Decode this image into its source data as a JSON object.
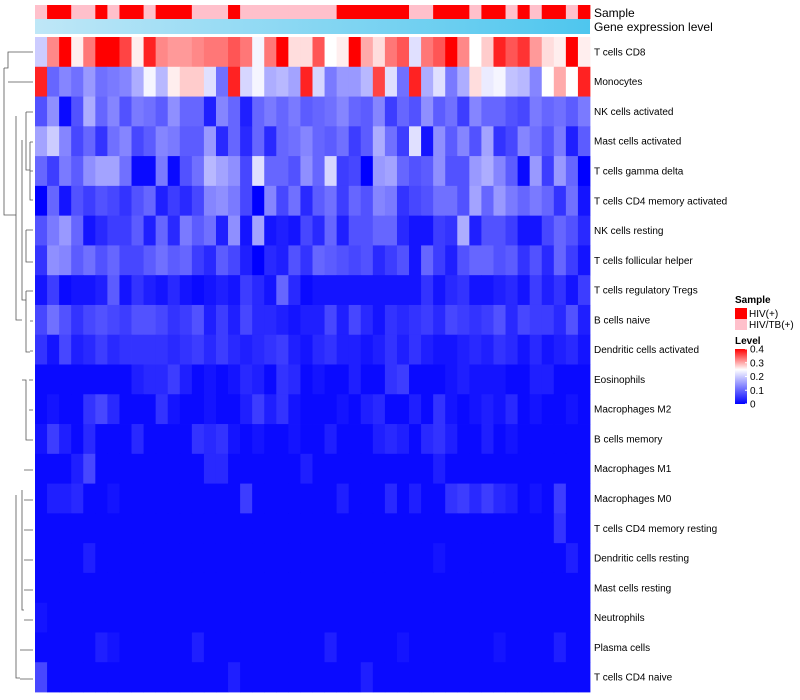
{
  "chart_data": {
    "type": "heatmap",
    "rows": [
      "T cells CD8",
      "Monocytes",
      "NK cells activated",
      "Mast cells activated",
      "T cells gamma delta",
      "T cells CD4 memory activated",
      "NK cells resting",
      "T cells follicular helper",
      "T cells regulatory  Tregs",
      "B cells naive",
      "Dendritic cells activated",
      "Eosinophils",
      "Macrophages M2",
      "B cells memory",
      "Macrophages M1",
      "Macrophages M0",
      "T cells CD4 memory resting",
      "Dendritic cells resting",
      "Mast cells resting",
      "Neutrophils",
      "Plasma cells",
      "T cells CD4 naive"
    ],
    "n_columns": 46,
    "annotations": {
      "sample": {
        "label": "Sample",
        "values": [
          "HIV/TB(+)",
          "HIV(+)",
          "HIV(+)",
          "HIV/TB(+)",
          "HIV/TB(+)",
          "HIV(+)",
          "HIV/TB(+)",
          "HIV(+)",
          "HIV(+)",
          "HIV/TB(+)",
          "HIV(+)",
          "HIV(+)",
          "HIV(+)",
          "HIV/TB(+)",
          "HIV/TB(+)",
          "HIV/TB(+)",
          "HIV(+)",
          "HIV/TB(+)",
          "HIV/TB(+)",
          "HIV/TB(+)",
          "HIV/TB(+)",
          "HIV/TB(+)",
          "HIV/TB(+)",
          "HIV/TB(+)",
          "HIV/TB(+)",
          "HIV(+)",
          "HIV(+)",
          "HIV(+)",
          "HIV(+)",
          "HIV(+)",
          "HIV(+)",
          "HIV/TB(+)",
          "HIV/TB(+)",
          "HIV(+)",
          "HIV(+)",
          "HIV(+)",
          "HIV/TB(+)",
          "HIV(+)",
          "HIV(+)",
          "HIV/TB(+)",
          "HIV(+)",
          "HIV/TB(+)",
          "HIV(+)",
          "HIV(+)",
          "HIV/TB(+)",
          "HIV(+)"
        ]
      },
      "gene_expression": {
        "label": "Gene expression level"
      }
    },
    "matrix": [
      [
        0.2,
        0.32,
        0.4,
        0.26,
        0.33,
        0.4,
        0.4,
        0.36,
        0.26,
        0.38,
        0.32,
        0.31,
        0.31,
        0.32,
        0.33,
        0.33,
        0.35,
        0.33,
        0.24,
        0.33,
        0.4,
        0.27,
        0.27,
        0.35,
        0.25,
        0.26,
        0.41,
        0.3,
        0.27,
        0.33,
        0.35,
        0.22,
        0.33,
        0.35,
        0.4,
        0.32,
        0.25,
        0.28,
        0.38,
        0.35,
        0.37,
        0.31,
        0.27,
        0.26,
        0.4,
        0.26
      ],
      [
        0.38,
        0.1,
        0.13,
        0.11,
        0.15,
        0.11,
        0.12,
        0.13,
        0.17,
        0.24,
        0.18,
        0.26,
        0.28,
        0.28,
        0.22,
        0.11,
        0.38,
        0.21,
        0.24,
        0.17,
        0.18,
        0.16,
        0.38,
        0.21,
        0.12,
        0.15,
        0.15,
        0.18,
        0.36,
        0.22,
        0.11,
        0.38,
        0.17,
        0.22,
        0.12,
        0.17,
        0.27,
        0.23,
        0.24,
        0.19,
        0.18,
        0.13,
        0.25,
        0.3,
        0.25,
        0.38
      ],
      [
        0.08,
        0.14,
        0.01,
        0.08,
        0.17,
        0.1,
        0.13,
        0.08,
        0.12,
        0.11,
        0.09,
        0.14,
        0.1,
        0.1,
        0.03,
        0.13,
        0.1,
        0.03,
        0.1,
        0.12,
        0.1,
        0.12,
        0.09,
        0.1,
        0.11,
        0.13,
        0.1,
        0.09,
        0.13,
        0.06,
        0.1,
        0.08,
        0.14,
        0.09,
        0.11,
        0.06,
        0.13,
        0.1,
        0.1,
        0.08,
        0.07,
        0.12,
        0.1,
        0.11,
        0.09,
        0.12
      ],
      [
        0.16,
        0.2,
        0.13,
        0.07,
        0.1,
        0.05,
        0.11,
        0.13,
        0.07,
        0.09,
        0.13,
        0.12,
        0.09,
        0.09,
        0.15,
        0.04,
        0.1,
        0.04,
        0.1,
        0.04,
        0.1,
        0.11,
        0.13,
        0.1,
        0.09,
        0.11,
        0.06,
        0.09,
        0.17,
        0.11,
        0.06,
        0.22,
        0.02,
        0.14,
        0.09,
        0.13,
        0.08,
        0.16,
        0.05,
        0.07,
        0.13,
        0.11,
        0.08,
        0.12,
        0.03,
        0.09
      ],
      [
        0.1,
        0.06,
        0.12,
        0.09,
        0.14,
        0.16,
        0.16,
        0.11,
        0.01,
        0.01,
        0.12,
        0.01,
        0.08,
        0.11,
        0.18,
        0.16,
        0.14,
        0.07,
        0.22,
        0.1,
        0.1,
        0.08,
        0.14,
        0.1,
        0.21,
        0.06,
        0.07,
        0.0,
        0.15,
        0.16,
        0.1,
        0.08,
        0.09,
        0.14,
        0.08,
        0.08,
        0.15,
        0.17,
        0.13,
        0.09,
        0.01,
        0.15,
        0.06,
        0.15,
        0.1,
        0.0
      ],
      [
        0.0,
        0.1,
        0.02,
        0.08,
        0.06,
        0.08,
        0.07,
        0.05,
        0.08,
        0.1,
        0.03,
        0.06,
        0.04,
        0.07,
        0.13,
        0.14,
        0.12,
        0.07,
        0.0,
        0.13,
        0.07,
        0.11,
        0.04,
        0.09,
        0.11,
        0.06,
        0.1,
        0.08,
        0.13,
        0.12,
        0.05,
        0.07,
        0.08,
        0.11,
        0.11,
        0.08,
        0.16,
        0.1,
        0.15,
        0.12,
        0.1,
        0.12,
        0.1,
        0.05,
        0.11,
        0.02
      ],
      [
        0.08,
        0.12,
        0.15,
        0.1,
        0.02,
        0.04,
        0.06,
        0.06,
        0.09,
        0.03,
        0.1,
        0.04,
        0.12,
        0.09,
        0.11,
        0.03,
        0.14,
        0.02,
        0.16,
        0.02,
        0.03,
        0.02,
        0.07,
        0.04,
        0.1,
        0.03,
        0.08,
        0.08,
        0.1,
        0.1,
        0.04,
        0.02,
        0.02,
        0.06,
        0.05,
        0.17,
        0.03,
        0.08,
        0.08,
        0.06,
        0.02,
        0.02,
        0.07,
        0.1,
        0.08,
        0.04
      ],
      [
        0.05,
        0.14,
        0.13,
        0.09,
        0.11,
        0.08,
        0.1,
        0.07,
        0.07,
        0.09,
        0.11,
        0.09,
        0.1,
        0.06,
        0.04,
        0.09,
        0.07,
        0.03,
        0.0,
        0.04,
        0.03,
        0.08,
        0.05,
        0.1,
        0.09,
        0.08,
        0.07,
        0.08,
        0.04,
        0.06,
        0.08,
        0.02,
        0.1,
        0.06,
        0.03,
        0.08,
        0.1,
        0.1,
        0.08,
        0.09,
        0.05,
        0.08,
        0.04,
        0.1,
        0.06,
        0.02
      ],
      [
        0.02,
        0.06,
        0.01,
        0.02,
        0.02,
        0.03,
        0.09,
        0.02,
        0.05,
        0.03,
        0.02,
        0.04,
        0.02,
        0.01,
        0.02,
        0.03,
        0.02,
        0.06,
        0.04,
        0.02,
        0.1,
        0.04,
        0.01,
        0.02,
        0.02,
        0.02,
        0.02,
        0.02,
        0.02,
        0.02,
        0.02,
        0.02,
        0.05,
        0.02,
        0.04,
        0.05,
        0.02,
        0.02,
        0.03,
        0.04,
        0.02,
        0.06,
        0.03,
        0.05,
        0.02,
        0.06
      ],
      [
        0.07,
        0.11,
        0.08,
        0.05,
        0.07,
        0.08,
        0.07,
        0.06,
        0.08,
        0.08,
        0.07,
        0.05,
        0.06,
        0.08,
        0.03,
        0.06,
        0.03,
        0.07,
        0.04,
        0.04,
        0.03,
        0.02,
        0.03,
        0.03,
        0.07,
        0.03,
        0.07,
        0.04,
        0.02,
        0.05,
        0.04,
        0.05,
        0.06,
        0.04,
        0.07,
        0.06,
        0.05,
        0.06,
        0.08,
        0.04,
        0.07,
        0.06,
        0.06,
        0.04,
        0.08,
        0.03
      ],
      [
        0.05,
        0.02,
        0.07,
        0.03,
        0.04,
        0.06,
        0.04,
        0.05,
        0.05,
        0.05,
        0.05,
        0.04,
        0.05,
        0.06,
        0.04,
        0.06,
        0.04,
        0.03,
        0.04,
        0.05,
        0.06,
        0.03,
        0.02,
        0.04,
        0.05,
        0.03,
        0.03,
        0.02,
        0.03,
        0.05,
        0.03,
        0.05,
        0.03,
        0.02,
        0.02,
        0.03,
        0.04,
        0.03,
        0.05,
        0.04,
        0.02,
        0.04,
        0.02,
        0.03,
        0.04,
        0.02
      ],
      [
        0.01,
        0.01,
        0.01,
        0.01,
        0.01,
        0.01,
        0.01,
        0.01,
        0.03,
        0.04,
        0.04,
        0.06,
        0.03,
        0.01,
        0.02,
        0.01,
        0.02,
        0.04,
        0.03,
        0.01,
        0.05,
        0.04,
        0.01,
        0.02,
        0.01,
        0.01,
        0.03,
        0.01,
        0.01,
        0.05,
        0.06,
        0.01,
        0.01,
        0.01,
        0.02,
        0.03,
        0.02,
        0.02,
        0.02,
        0.01,
        0.01,
        0.03,
        0.03,
        0.01,
        0.01,
        0.01
      ],
      [
        0.01,
        0.02,
        0.01,
        0.01,
        0.05,
        0.07,
        0.04,
        0.01,
        0.01,
        0.01,
        0.05,
        0.02,
        0.01,
        0.01,
        0.02,
        0.01,
        0.01,
        0.03,
        0.06,
        0.03,
        0.05,
        0.02,
        0.01,
        0.01,
        0.01,
        0.02,
        0.01,
        0.03,
        0.04,
        0.01,
        0.01,
        0.03,
        0.01,
        0.05,
        0.02,
        0.01,
        0.02,
        0.03,
        0.02,
        0.04,
        0.01,
        0.02,
        0.01,
        0.01,
        0.02,
        0.01
      ],
      [
        0.02,
        0.06,
        0.03,
        0.01,
        0.04,
        0.01,
        0.01,
        0.01,
        0.04,
        0.01,
        0.01,
        0.01,
        0.01,
        0.05,
        0.04,
        0.05,
        0.02,
        0.01,
        0.02,
        0.01,
        0.01,
        0.02,
        0.01,
        0.01,
        0.03,
        0.01,
        0.01,
        0.01,
        0.03,
        0.04,
        0.03,
        0.01,
        0.04,
        0.05,
        0.03,
        0.01,
        0.01,
        0.03,
        0.01,
        0.02,
        0.01,
        0.01,
        0.01,
        0.01,
        0.01,
        0.01
      ],
      [
        0.01,
        0.01,
        0.01,
        0.03,
        0.07,
        0.01,
        0.01,
        0.01,
        0.01,
        0.01,
        0.01,
        0.01,
        0.01,
        0.01,
        0.04,
        0.04,
        0.01,
        0.01,
        0.01,
        0.01,
        0.01,
        0.01,
        0.03,
        0.01,
        0.01,
        0.01,
        0.01,
        0.01,
        0.01,
        0.01,
        0.01,
        0.01,
        0.01,
        0.03,
        0.01,
        0.01,
        0.01,
        0.01,
        0.01,
        0.01,
        0.01,
        0.01,
        0.01,
        0.01,
        0.01,
        0.01
      ],
      [
        0.01,
        0.03,
        0.03,
        0.04,
        0.01,
        0.01,
        0.02,
        0.01,
        0.01,
        0.01,
        0.01,
        0.01,
        0.01,
        0.01,
        0.01,
        0.01,
        0.01,
        0.06,
        0.01,
        0.01,
        0.01,
        0.01,
        0.01,
        0.01,
        0.01,
        0.03,
        0.01,
        0.01,
        0.01,
        0.04,
        0.01,
        0.03,
        0.01,
        0.01,
        0.05,
        0.06,
        0.04,
        0.06,
        0.04,
        0.03,
        0.01,
        0.02,
        0.01,
        0.06,
        0.01,
        0.01
      ],
      [
        0.01,
        0.01,
        0.01,
        0.01,
        0.01,
        0.01,
        0.01,
        0.01,
        0.01,
        0.01,
        0.01,
        0.01,
        0.01,
        0.01,
        0.01,
        0.01,
        0.01,
        0.01,
        0.01,
        0.01,
        0.01,
        0.01,
        0.01,
        0.01,
        0.01,
        0.01,
        0.01,
        0.01,
        0.01,
        0.01,
        0.01,
        0.01,
        0.01,
        0.01,
        0.01,
        0.01,
        0.01,
        0.01,
        0.01,
        0.01,
        0.01,
        0.01,
        0.01,
        0.05,
        0.01,
        0.01
      ],
      [
        0.01,
        0.01,
        0.01,
        0.01,
        0.03,
        0.01,
        0.01,
        0.01,
        0.01,
        0.01,
        0.01,
        0.01,
        0.01,
        0.01,
        0.01,
        0.01,
        0.01,
        0.01,
        0.01,
        0.01,
        0.01,
        0.01,
        0.01,
        0.01,
        0.01,
        0.01,
        0.01,
        0.01,
        0.01,
        0.01,
        0.01,
        0.01,
        0.01,
        0.02,
        0.01,
        0.01,
        0.01,
        0.01,
        0.01,
        0.01,
        0.01,
        0.01,
        0.01,
        0.01,
        0.03,
        0.01
      ],
      [
        0.01,
        0.01,
        0.01,
        0.01,
        0.01,
        0.01,
        0.01,
        0.01,
        0.01,
        0.01,
        0.01,
        0.01,
        0.01,
        0.01,
        0.01,
        0.01,
        0.01,
        0.01,
        0.01,
        0.01,
        0.01,
        0.01,
        0.01,
        0.01,
        0.01,
        0.01,
        0.01,
        0.01,
        0.01,
        0.01,
        0.01,
        0.01,
        0.01,
        0.01,
        0.01,
        0.01,
        0.01,
        0.01,
        0.01,
        0.01,
        0.01,
        0.01,
        0.01,
        0.01,
        0.01,
        0.01
      ],
      [
        0.02,
        0.01,
        0.01,
        0.01,
        0.01,
        0.01,
        0.01,
        0.01,
        0.01,
        0.01,
        0.01,
        0.01,
        0.01,
        0.01,
        0.01,
        0.01,
        0.01,
        0.01,
        0.01,
        0.01,
        0.01,
        0.01,
        0.01,
        0.01,
        0.01,
        0.01,
        0.01,
        0.01,
        0.01,
        0.01,
        0.01,
        0.01,
        0.01,
        0.01,
        0.01,
        0.01,
        0.01,
        0.01,
        0.01,
        0.01,
        0.01,
        0.01,
        0.01,
        0.01,
        0.01,
        0.01
      ],
      [
        0.01,
        0.01,
        0.01,
        0.01,
        0.01,
        0.03,
        0.02,
        0.01,
        0.01,
        0.01,
        0.01,
        0.01,
        0.01,
        0.03,
        0.01,
        0.01,
        0.01,
        0.01,
        0.01,
        0.01,
        0.01,
        0.01,
        0.01,
        0.01,
        0.03,
        0.01,
        0.01,
        0.01,
        0.01,
        0.01,
        0.02,
        0.01,
        0.01,
        0.01,
        0.01,
        0.01,
        0.01,
        0.01,
        0.02,
        0.01,
        0.01,
        0.01,
        0.01,
        0.03,
        0.01,
        0.01
      ],
      [
        0.07,
        0.01,
        0.01,
        0.01,
        0.01,
        0.01,
        0.01,
        0.01,
        0.01,
        0.01,
        0.01,
        0.01,
        0.01,
        0.01,
        0.01,
        0.01,
        0.03,
        0.01,
        0.01,
        0.01,
        0.01,
        0.01,
        0.01,
        0.01,
        0.01,
        0.01,
        0.01,
        0.03,
        0.01,
        0.01,
        0.01,
        0.01,
        0.01,
        0.01,
        0.01,
        0.01,
        0.01,
        0.01,
        0.01,
        0.01,
        0.01,
        0.01,
        0.01,
        0.01,
        0.01,
        0.01
      ]
    ],
    "value_range": [
      0,
      0.4
    ],
    "color_scale": {
      "low": "#0000ff",
      "mid": "#ffffff",
      "high": "#ff0000",
      "mid_value": 0.25
    },
    "legends": {
      "sample": {
        "title": "Sample",
        "entries": [
          {
            "label": "HIV(+)",
            "color": "#ff0000"
          },
          {
            "label": "HIV/TB(+)",
            "color": "#ffc0cb"
          }
        ]
      },
      "level": {
        "title": "Level",
        "ticks": [
          {
            "label": "0.4",
            "value": 0.4
          },
          {
            "label": "0.3",
            "value": 0.3
          },
          {
            "label": "0.2",
            "value": 0.2
          },
          {
            "label": "0.1",
            "value": 0.1
          },
          {
            "label": "0",
            "value": 0
          }
        ]
      }
    },
    "gradient_colors": {
      "left": "#bfe7f7",
      "right": "#4ec6ee"
    }
  }
}
